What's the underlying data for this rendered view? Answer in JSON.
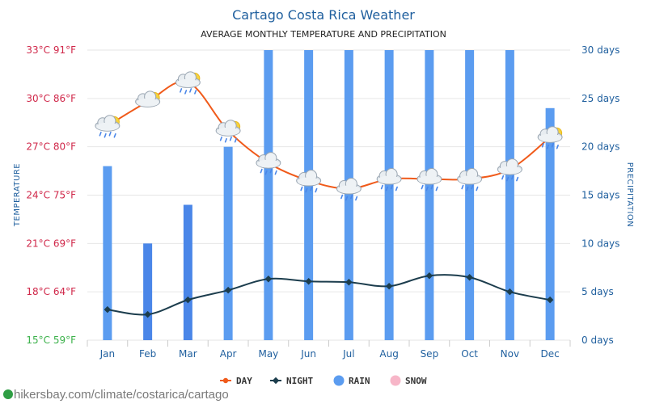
{
  "colors": {
    "title": "#1f5f9e",
    "day_line": "#f05a1a",
    "night_line": "#1c3d4d",
    "rain_bar": "#5b9cf0",
    "rain_bar_highlight": "#4a86e8",
    "snow": "#f7b6c8",
    "grid": "#e6e6e6",
    "temp_ticks": "#d0284a",
    "temp_base": "#3bb14a",
    "right_ticks": "#1f5f9e"
  },
  "footer": {
    "source": "hikersbay.com/climate/costarica/cartago"
  },
  "chart_data": {
    "type": "bar+line",
    "title": "Cartago Costa Rica Weather",
    "subtitle": "AVERAGE MONTHLY TEMPERATURE AND PRECIPITATION",
    "y_left_label": "TEMPERATURE",
    "y_right_label": "PRECIPITATION",
    "y_left_range": [
      15,
      33
    ],
    "y_right_range": [
      0,
      30
    ],
    "y_left_ticks": [
      "33°C 91°F",
      "30°C 86°F",
      "27°C 80°F",
      "24°C 75°F",
      "21°C 69°F",
      "18°C 64°F",
      "15°C 59°F"
    ],
    "y_right_ticks": [
      "30 days",
      "25 days",
      "20 days",
      "15 days",
      "10 days",
      "5 days",
      "0 days"
    ],
    "categories": [
      "Jan",
      "Feb",
      "Mar",
      "Apr",
      "May",
      "Jun",
      "Jul",
      "Aug",
      "Sep",
      "Oct",
      "Nov",
      "Dec"
    ],
    "series": [
      {
        "name": "DAY",
        "type": "line",
        "values": [
          28.3,
          29.8,
          31.0,
          28.0,
          26.0,
          24.9,
          24.4,
          25.0,
          25.0,
          25.0,
          25.6,
          27.6
        ]
      },
      {
        "name": "NIGHT",
        "type": "line",
        "values": [
          16.9,
          16.6,
          17.5,
          18.1,
          18.8,
          18.65,
          18.6,
          18.35,
          19.0,
          18.9,
          18.0,
          17.5
        ]
      },
      {
        "name": "RAIN",
        "type": "bar",
        "values": [
          18,
          10,
          14,
          20,
          30,
          30,
          30,
          30,
          30,
          30,
          30,
          24
        ]
      },
      {
        "name": "SNOW",
        "type": "bar",
        "values": [
          0,
          0,
          0,
          0,
          0,
          0,
          0,
          0,
          0,
          0,
          0,
          0
        ]
      }
    ],
    "weather_icons": [
      "cloud-sun-rain-icon",
      "cloud-sun-icon",
      "cloud-sun-rain-icon",
      "cloud-sun-rain-icon",
      "cloud-rain-icon",
      "cloud-rain-icon",
      "cloud-rain-icon",
      "cloud-rain-icon",
      "cloud-rain-icon",
      "cloud-rain-icon",
      "cloud-rain-icon",
      "cloud-sun-rain-icon"
    ],
    "legend": [
      "DAY",
      "NIGHT",
      "RAIN",
      "SNOW"
    ],
    "legend_position": "bottom",
    "grid": true
  }
}
